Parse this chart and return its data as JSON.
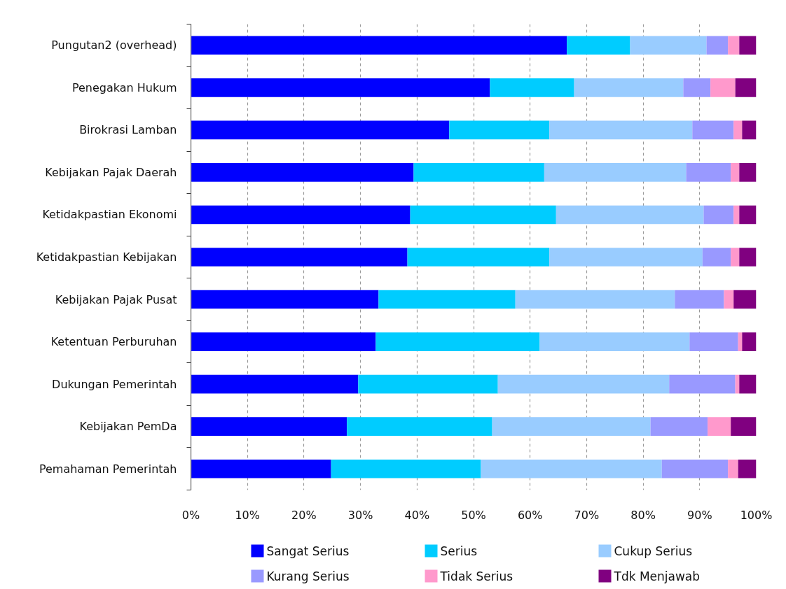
{
  "chart_data": {
    "type": "bar",
    "orientation": "horizontal",
    "stacked": true,
    "categories": [
      "Pungutan2 (overhead)",
      "Penegakan Hukum",
      "Birokrasi Lamban",
      "Kebijakan Pajak Daerah",
      "Ketidakpastian Ekonomi",
      "Ketidakpastian Kebijakan",
      "Kebijakan Pajak Pusat",
      "Ketentuan Perburuhan",
      "Dukungan Pemerintah",
      "Kebijakan PemDa",
      "Pemahaman Pemerintah"
    ],
    "series": [
      {
        "name": "Sangat Serius",
        "color": "#0000ff",
        "values": [
          66.5,
          52.9,
          45.7,
          39.4,
          38.8,
          38.3,
          33.2,
          32.7,
          29.6,
          27.6,
          24.8
        ]
      },
      {
        "name": "Serius",
        "color": "#00ccff",
        "values": [
          11.2,
          14.9,
          17.7,
          23.1,
          25.8,
          25.1,
          24.2,
          29.0,
          24.7,
          25.7,
          26.5
        ]
      },
      {
        "name": "Cukup Serius",
        "color": "#99ccff",
        "values": [
          13.5,
          19.3,
          25.3,
          25.1,
          26.1,
          27.1,
          28.2,
          26.5,
          30.3,
          28.0,
          32.0
        ]
      },
      {
        "name": "Kurang Serius",
        "color": "#9999ff",
        "values": [
          3.8,
          4.8,
          7.3,
          7.9,
          5.3,
          5.0,
          8.7,
          8.6,
          11.7,
          10.1,
          11.7
        ]
      },
      {
        "name": "Tidak Serius",
        "color": "#ff99cc",
        "values": [
          2.0,
          4.4,
          1.5,
          1.5,
          1.0,
          1.5,
          1.7,
          0.7,
          0.7,
          4.1,
          1.8
        ]
      },
      {
        "name": "Tdk Menjawab",
        "color": "#800080",
        "values": [
          3.0,
          3.7,
          2.5,
          3.0,
          3.0,
          3.0,
          4.0,
          2.5,
          3.0,
          4.5,
          3.2
        ]
      }
    ],
    "xlim": [
      0,
      100
    ],
    "xticks": [
      {
        "value": 0,
        "label": "0%"
      },
      {
        "value": 10,
        "label": "10%"
      },
      {
        "value": 20,
        "label": "20%"
      },
      {
        "value": 30,
        "label": "30%"
      },
      {
        "value": 40,
        "label": "40%"
      },
      {
        "value": 50,
        "label": "50%"
      },
      {
        "value": 60,
        "label": "60%"
      },
      {
        "value": 70,
        "label": "70%"
      },
      {
        "value": 80,
        "label": "80%"
      },
      {
        "value": 90,
        "label": "90%"
      },
      {
        "value": 100,
        "label": "100%"
      }
    ],
    "grid": "x",
    "legend": "bottom"
  }
}
